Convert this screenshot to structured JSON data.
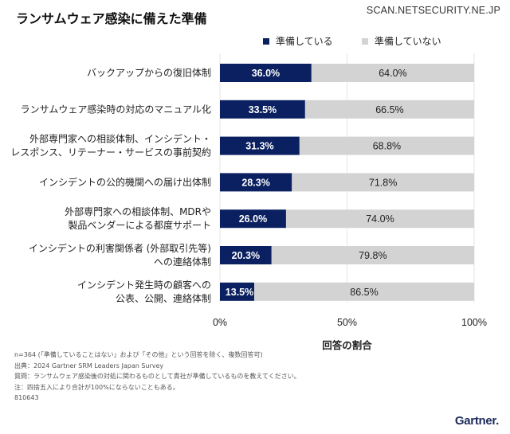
{
  "header": {
    "title": "ランサムウェア感染に備えた準備",
    "site": "SCAN.NETSECURITY.NE.JP"
  },
  "colors": {
    "prepared": "#0a2060",
    "not_prepared": "#d3d3d3",
    "gridline": "#e6e6e6"
  },
  "chart_data": {
    "type": "bar",
    "orientation": "horizontal",
    "stacked": true,
    "title": "ランサムウェア感染に備えた準備",
    "xlabel": "回答の割合",
    "ylabel": "",
    "xlim": [
      0,
      100
    ],
    "x_ticks": [
      0,
      50,
      100
    ],
    "x_tick_labels": [
      "0%",
      "50%",
      "100%"
    ],
    "grid": true,
    "legend_position": "top-right",
    "categories": [
      [
        "バックアップからの復旧体制"
      ],
      [
        "ランサムウェア感染時の対応のマニュアル化"
      ],
      [
        "外部専門家への相談体制、インシデント・",
        "レスポンス、リテーナー・サービスの事前契約"
      ],
      [
        "インシデントの公的機関への届け出体制"
      ],
      [
        "外部専門家への相談体制、MDRや",
        "製品ベンダーによる都度サポート"
      ],
      [
        "インシデントの利害関係者 (外部取引先等)",
        "への連絡体制"
      ],
      [
        "インシデント発生時の顧客への",
        "公表、公開、連絡体制"
      ]
    ],
    "series": [
      {
        "name": "準備している",
        "values": [
          36.0,
          33.5,
          31.3,
          28.3,
          26.0,
          20.3,
          13.5
        ],
        "labels": [
          "36.0%",
          "33.5%",
          "31.3%",
          "28.3%",
          "26.0%",
          "20.3%",
          "13.5%"
        ]
      },
      {
        "name": "準備していない",
        "values": [
          64.0,
          66.5,
          68.8,
          71.8,
          74.0,
          79.8,
          86.5
        ],
        "labels": [
          "64.0%",
          "66.5%",
          "68.8%",
          "71.8%",
          "74.0%",
          "79.8%",
          "86.5%"
        ]
      }
    ]
  },
  "notes": [
    "n=364 (「準備していることはない」および「その他」という回答を除く、複数回答可)",
    "出典：2024 Gartner SRM Leaders Japan Survey",
    "質問：ランサムウェア感染後の対処に関わるものとして貴社が準備しているものを教えてください。",
    "注：四捨五入により合計が100%にならないこともある。",
    "810643"
  ],
  "logo": "Gartner."
}
